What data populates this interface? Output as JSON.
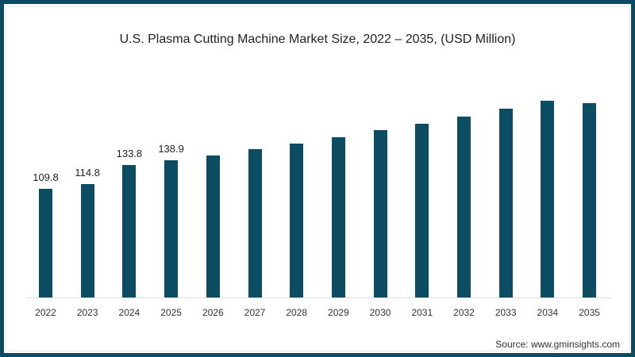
{
  "chart_data": {
    "type": "bar",
    "title": "U.S. Plasma Cutting Machine Market Size, 2022 – 2035, (USD Million)",
    "categories": [
      "2022",
      "2023",
      "2024",
      "2025",
      "2026",
      "2027",
      "2028",
      "2029",
      "2030",
      "2031",
      "2032",
      "2033",
      "2034",
      "2035"
    ],
    "values": [
      109.8,
      114.8,
      133.8,
      138.9,
      143.4,
      149.8,
      155.4,
      161.9,
      169.1,
      175.5,
      182.7,
      190.7,
      198.7,
      196.3
    ],
    "data_labels": [
      "109.8",
      "114.8",
      "133.8",
      "138.9",
      "",
      "",
      "",
      "",
      "",
      "",
      "",
      "",
      "",
      ""
    ],
    "xlabel": "",
    "ylabel": "",
    "ylim": [
      0,
      200
    ],
    "grid": false,
    "legend": null,
    "bar_color": "#0c4d63",
    "source": "Source: www.gminsights.com"
  }
}
